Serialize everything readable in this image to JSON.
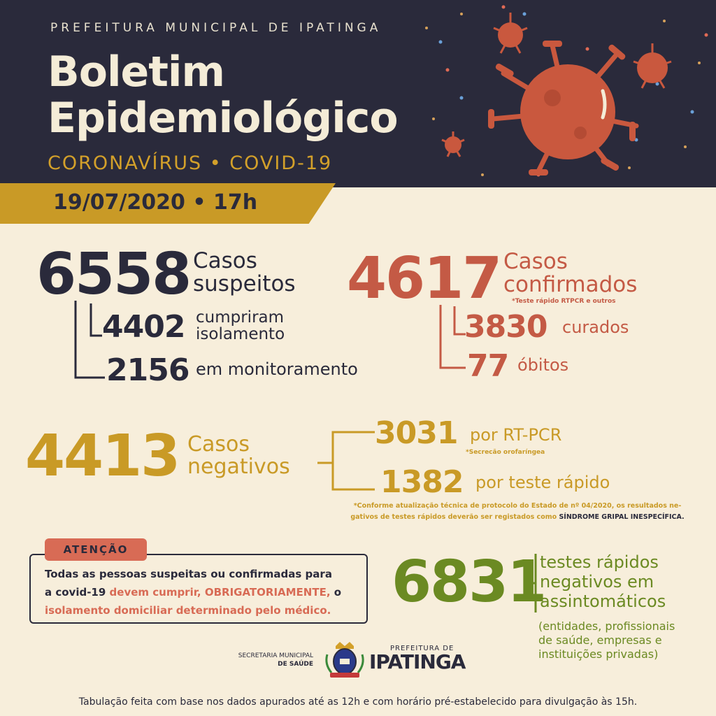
{
  "header": {
    "org": "PREFEITURA MUNICIPAL DE IPATINGA",
    "title_line1": "Boletim",
    "title_line2": "Epidemiológico",
    "subtitle": "CORONAVÍRUS • COVID-19",
    "date": "19/07/2020 • 17h"
  },
  "suspected": {
    "total": "6558",
    "label_line1": "Casos",
    "label_line2": "suspeitos",
    "isolation_value": "4402",
    "isolation_label_line1": "cumpriram",
    "isolation_label_line2": "isolamento",
    "monitoring_value": "2156",
    "monitoring_label": "em monitoramento"
  },
  "confirmed": {
    "total": "4617",
    "label_line1": "Casos",
    "label_line2": "confirmados",
    "note": "*Teste rápido RTPCR e outros",
    "cured_value": "3830",
    "cured_label": "curados",
    "deaths_value": "77",
    "deaths_label": "óbitos"
  },
  "negative": {
    "total": "4413",
    "label_line1": "Casos",
    "label_line2": "negativos",
    "rtpcr_value": "3031",
    "rtpcr_label": "por RT-PCR",
    "rtpcr_note": "*Secrecão orofaríngea",
    "rapid_value": "1382",
    "rapid_label": "por teste rápido",
    "note_line1": "*Conforme atualização técnica de protocolo do Estado de nº 04/2020, os resultados ne-",
    "note_line2_a": "gativos de testes rápidos deverão ser registados como ",
    "note_line2_b": "SÍNDROME GRIPAL INESPECÍFICA."
  },
  "attention": {
    "tag": "ATENÇÃO",
    "line1": "Todas as pessoas suspeitas ou confirmadas para",
    "line2_a": "a covid-19 ",
    "line2_b": "devem cumprir, OBRIGATORIAMENTE,",
    "line2_c": " o",
    "line3": "isolamento domiciliar determinado pelo médico."
  },
  "asymptomatic": {
    "total": "6831",
    "label_line1": "testes rápidos",
    "label_line2": "negativos em",
    "label_line3": "assintomáticos",
    "detail_line1": "(entidades, profissionais",
    "detail_line2": "de saúde, empresas e",
    "detail_line3": "instituições privadas)"
  },
  "logos": {
    "secretaria_line1": "SECRETARIA MUNICIPAL",
    "secretaria_line2": "DE SAÚDE",
    "prefeitura_small": "PREFEITURA DE",
    "prefeitura_big": "IPATINGA"
  },
  "footer": "Tabulação feita com base nos dados apurados até as 12h e com horário pré-estabelecido para divulgação às 15h.",
  "colors": {
    "navy": "#2a2a3b",
    "red": "#c45a45",
    "gold": "#c99a26",
    "green": "#6b8a22",
    "cream": "#f7eedb"
  }
}
